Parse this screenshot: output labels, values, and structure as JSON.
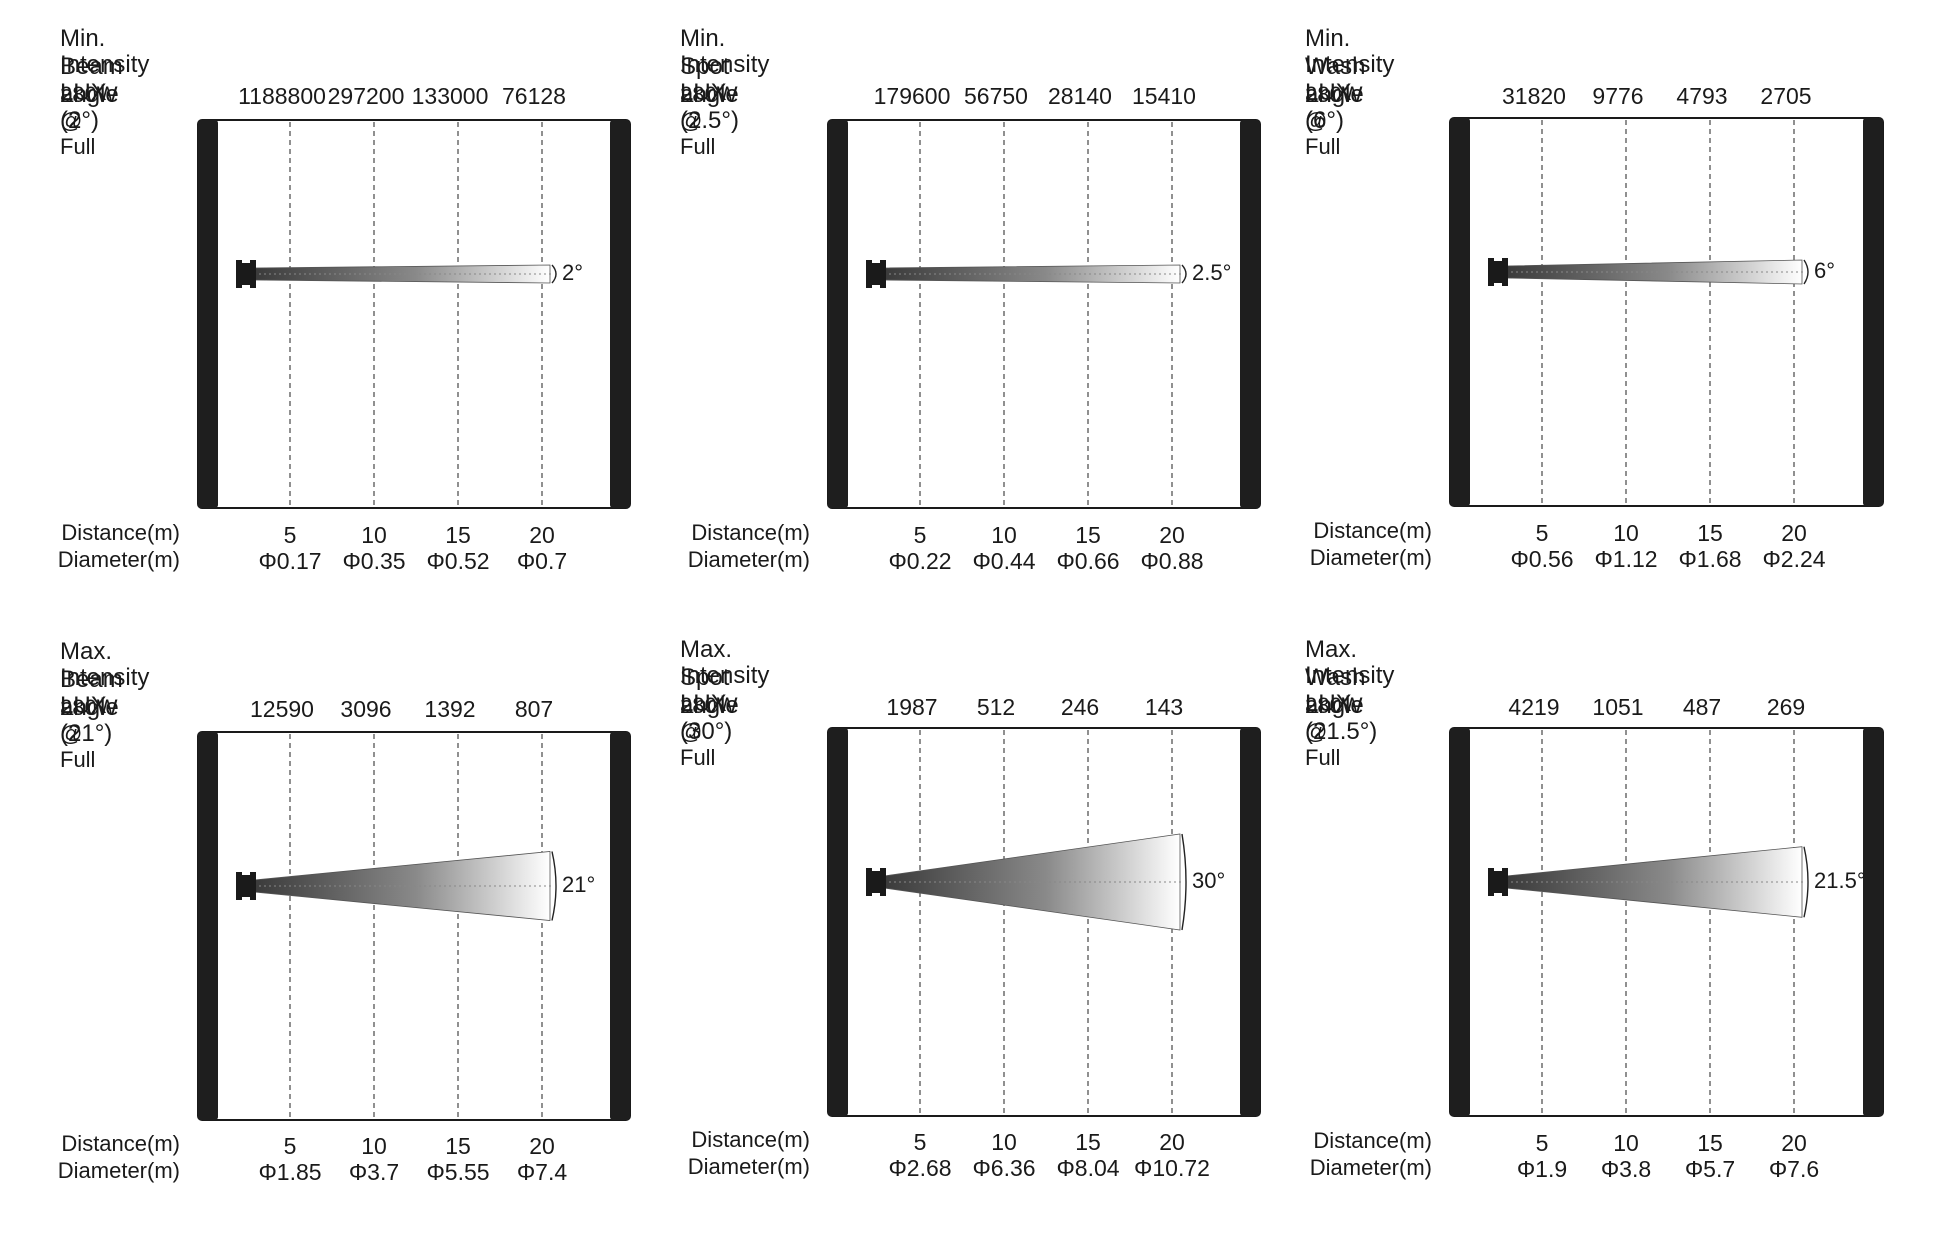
{
  "labels": {
    "distance": "Distance(m)",
    "diameter": "Diameter(m)",
    "power": "280W @ Full",
    "distances": [
      "5",
      "10",
      "15",
      "20"
    ]
  },
  "panels": [
    {
      "title": "Min. Beam angle",
      "intensity": "Intensity LUX (2°)",
      "lux": [
        "1188800",
        "297200",
        "133000",
        "76128"
      ],
      "diameters": [
        "Φ0.17",
        "Φ0.35",
        "Φ0.52",
        "Φ0.7"
      ],
      "angle_label": "2°",
      "beam_angle_deg": 2
    },
    {
      "title": "Min. Spot angle",
      "intensity": "Intensity LUX (2.5°)",
      "lux": [
        "179600",
        "56750",
        "28140",
        "15410"
      ],
      "diameters": [
        "Φ0.22",
        "Φ0.44",
        "Φ0.66",
        "Φ0.88"
      ],
      "angle_label": "2.5°",
      "beam_angle_deg": 2.5
    },
    {
      "title": "Min. Wash angle",
      "intensity": "Intensity LUX (6°)",
      "lux": [
        "31820",
        "9776",
        "4793",
        "2705"
      ],
      "diameters": [
        "Φ0.56",
        "Φ1.12",
        "Φ1.68",
        "Φ2.24"
      ],
      "angle_label": "6°",
      "beam_angle_deg": 6
    },
    {
      "title": "Max. Beam angle",
      "intensity": "Intensity LUX (21°)",
      "lux": [
        "12590",
        "3096",
        "1392",
        "807"
      ],
      "diameters": [
        "Φ1.85",
        "Φ3.7",
        "Φ5.55",
        "Φ7.4"
      ],
      "angle_label": "21°",
      "beam_angle_deg": 21
    },
    {
      "title": "Max. Spot angle",
      "intensity": "Intensity LUX (30°)",
      "lux": [
        "1987",
        "512",
        "246",
        "143"
      ],
      "diameters": [
        "Φ2.68",
        "Φ6.36",
        "Φ8.04",
        "Φ10.72"
      ],
      "angle_label": "30°",
      "beam_angle_deg": 30
    },
    {
      "title": "Max. Wash angle",
      "intensity": "Intensity LUX (21.5°)",
      "lux": [
        "4219",
        "1051",
        "487",
        "269"
      ],
      "diameters": [
        "Φ1.9",
        "Φ3.8",
        "Φ5.7",
        "Φ7.6"
      ],
      "angle_label": "21.5°",
      "beam_angle_deg": 21.5
    }
  ]
}
